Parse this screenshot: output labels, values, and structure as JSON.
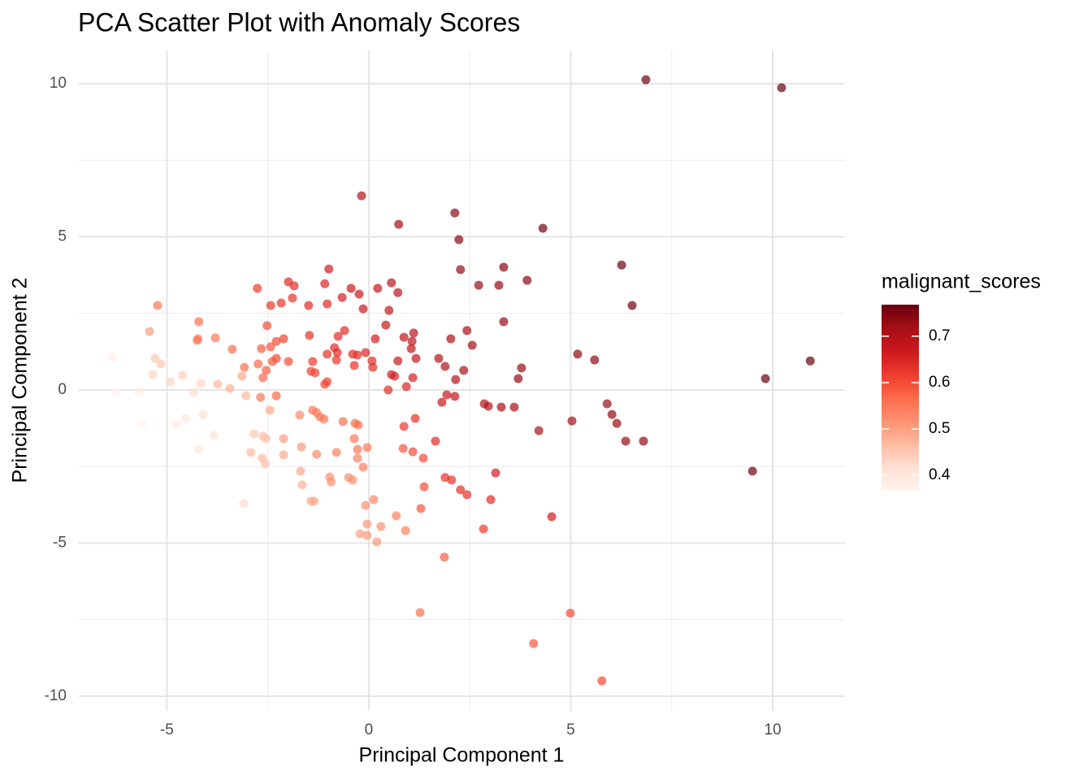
{
  "chart_data": {
    "type": "scatter",
    "title": "PCA Scatter Plot with Anomaly Scores",
    "x_label": "Principal Component 1",
    "y_label": "Principal Component 2",
    "color_label": "malignant_scores",
    "x": [
      6.86,
      10.22,
      -0.18,
      0.74,
      2.13,
      2.23,
      4.31,
      6.26,
      6.52,
      10.93,
      9.82,
      9.5,
      2.27,
      3.34,
      2.72,
      3.22,
      3.92,
      3.34,
      2.43,
      2.03,
      2.56,
      5.17,
      5.59,
      3.78,
      3.7,
      2.35,
      1.73,
      1.89,
      2.15,
      2.86,
      2.96,
      3.28,
      3.6,
      4.21,
      5.03,
      5.9,
      6.02,
      6.14,
      6.36,
      6.8,
      1.81,
      1.93,
      2.13,
      1.65,
      1.89,
      2.05,
      2.27,
      2.43,
      3.14,
      3.02,
      2.84,
      4.53,
      1.87,
      1.27,
      4.99,
      4.08,
      5.77,
      1.29,
      1.37,
      1.35,
      1.09,
      0.85,
      0.87,
      1.15,
      0.93,
      0.48,
      1.09,
      0.64,
      0.56,
      0.72,
      1.17,
      1.05,
      1.11,
      1.07,
      0.87,
      0.16,
      0.42,
      0.5,
      0.56,
      0.72,
      0.22,
      -0.24,
      -0.14,
      -0.44,
      -0.66,
      -0.99,
      -1.09,
      -1.03,
      -1.49,
      -1.85,
      -1.99,
      -1.89,
      -2.17,
      -2.43,
      -2.76,
      -0.6,
      -0.76,
      -0.85,
      -0.78,
      -1.03,
      -0.4,
      -0.28,
      -0.08,
      0.08,
      0.1,
      -0.36,
      -0.8,
      -1.47,
      -1.39,
      -1.43,
      -1.33,
      -1.03,
      -1.09,
      -2.11,
      -2.29,
      -1.99,
      -2.29,
      -2.39,
      -2.52,
      -2.43,
      -2.66,
      -2.62,
      -2.54,
      -3.08,
      -2.74,
      -2.29,
      -2.68,
      -3.38,
      -3.8,
      -4.21,
      -4.23,
      -4.25,
      -5.23,
      -5.43,
      -5.29,
      -5.15,
      -5.35,
      -4.91,
      -4.61,
      -6.34,
      -6.26,
      -5.69,
      -5.59,
      -4.75,
      -4.53,
      -4.33,
      -4.16,
      -4.1,
      -4.21,
      -3.84,
      -3.74,
      -3.44,
      -3.14,
      -3.04,
      -3.1,
      -2.84,
      -2.62,
      -2.54,
      -2.92,
      -2.64,
      -2.56,
      -2.45,
      -2.11,
      -2.11,
      -1.71,
      -1.67,
      -1.69,
      -1.65,
      -1.43,
      -1.35,
      -1.39,
      -1.29,
      -1.21,
      -1.11,
      -1.29,
      -0.8,
      -0.64,
      -0.34,
      -0.26,
      -0.36,
      -0.04,
      -0.28,
      -0.28,
      -0.14,
      -0.5,
      -0.4,
      -0.97,
      -0.93,
      0.12,
      -0.08,
      -0.04,
      -0.22,
      -0.04,
      0.3,
      0.2,
      0.68,
      0.91
    ],
    "y": [
      10.13,
      9.87,
      6.34,
      5.41,
      5.78,
      4.91,
      5.28,
      4.08,
      2.76,
      0.95,
      0.37,
      -2.65,
      3.93,
      4.01,
      3.42,
      3.42,
      3.58,
      2.23,
      1.94,
      1.67,
      1.46,
      1.17,
      0.98,
      0.72,
      0.37,
      0.64,
      1.03,
      0.77,
      0.34,
      -0.45,
      -0.53,
      -0.56,
      -0.56,
      -1.33,
      -1.01,
      -0.45,
      -0.8,
      -1.09,
      -1.67,
      -1.67,
      -0.4,
      -0.16,
      -0.21,
      -1.67,
      -2.86,
      -2.94,
      -3.26,
      -3.42,
      -2.71,
      -3.58,
      -4.54,
      -4.14,
      -5.46,
      -7.27,
      -7.29,
      -8.28,
      -9.5,
      -3.87,
      -3.16,
      -2.23,
      -2.02,
      -1.91,
      -1.19,
      -0.93,
      0.11,
      0.0,
      0.4,
      0.45,
      0.5,
      0.95,
      1.03,
      1.35,
      1.86,
      1.59,
      1.72,
      1.67,
      2.12,
      2.6,
      3.5,
      3.18,
      3.32,
      3.13,
      2.65,
      3.32,
      3.02,
      3.95,
      3.47,
      2.81,
      2.76,
      3.4,
      3.53,
      3.0,
      2.84,
      2.76,
      3.32,
      1.94,
      1.75,
      1.38,
      1.22,
      1.17,
      1.17,
      1.14,
      1.22,
      0.95,
      0.74,
      0.8,
      0.98,
      1.78,
      0.93,
      0.61,
      0.56,
      0.27,
      0.19,
      1.67,
      1.59,
      0.93,
      1.03,
      0.93,
      2.1,
      1.41,
      1.35,
      0.4,
      0.64,
      0.74,
      0.85,
      -0.19,
      -0.24,
      1.33,
      1.7,
      2.23,
      1.67,
      1.62,
      2.76,
      1.91,
      1.03,
      0.85,
      0.5,
      0.27,
      0.48,
      1.06,
      -0.08,
      -0.05,
      -1.11,
      -1.11,
      -0.93,
      -0.08,
      0.21,
      -0.8,
      -1.94,
      -1.49,
      0.19,
      0.05,
      0.45,
      -0.19,
      -3.71,
      -1.43,
      -1.51,
      -1.59,
      -2.04,
      -2.23,
      -2.41,
      -0.66,
      -1.59,
      -2.12,
      -0.82,
      -1.86,
      -2.65,
      -3.1,
      -3.63,
      -3.63,
      -0.66,
      -0.74,
      -0.88,
      -0.95,
      -2.1,
      -2.04,
      -1.03,
      -1.09,
      -1.14,
      -1.59,
      -1.88,
      -1.94,
      -2.23,
      -2.52,
      -2.86,
      -2.94,
      -2.84,
      -3.0,
      -3.58,
      -3.77,
      -4.38,
      -4.7,
      -4.75,
      -4.46,
      -4.96,
      -4.11,
      -4.59
    ],
    "scores": [
      0.76,
      0.77,
      0.7,
      0.72,
      0.74,
      0.74,
      0.76,
      0.76,
      0.76,
      0.77,
      0.77,
      0.76,
      0.73,
      0.74,
      0.73,
      0.73,
      0.74,
      0.73,
      0.72,
      0.71,
      0.72,
      0.74,
      0.74,
      0.73,
      0.73,
      0.71,
      0.7,
      0.7,
      0.7,
      0.7,
      0.7,
      0.71,
      0.71,
      0.71,
      0.72,
      0.73,
      0.73,
      0.73,
      0.73,
      0.73,
      0.67,
      0.67,
      0.68,
      0.64,
      0.63,
      0.63,
      0.63,
      0.63,
      0.66,
      0.64,
      0.62,
      0.66,
      0.58,
      0.56,
      0.6,
      0.59,
      0.6,
      0.59,
      0.6,
      0.6,
      0.6,
      0.59,
      0.62,
      0.63,
      0.65,
      0.64,
      0.66,
      0.65,
      0.66,
      0.67,
      0.67,
      0.68,
      0.69,
      0.68,
      0.68,
      0.66,
      0.67,
      0.68,
      0.69,
      0.69,
      0.68,
      0.67,
      0.67,
      0.67,
      0.66,
      0.66,
      0.65,
      0.64,
      0.64,
      0.64,
      0.64,
      0.63,
      0.63,
      0.62,
      0.62,
      0.64,
      0.64,
      0.64,
      0.64,
      0.63,
      0.64,
      0.64,
      0.65,
      0.64,
      0.64,
      0.63,
      0.63,
      0.63,
      0.62,
      0.61,
      0.61,
      0.61,
      0.61,
      0.61,
      0.6,
      0.6,
      0.6,
      0.59,
      0.6,
      0.59,
      0.58,
      0.57,
      0.58,
      0.56,
      0.57,
      0.57,
      0.55,
      0.56,
      0.55,
      0.56,
      0.55,
      0.55,
      0.55,
      0.5,
      0.45,
      0.45,
      0.43,
      0.43,
      0.44,
      0.38,
      0.37,
      0.39,
      0.37,
      0.39,
      0.4,
      0.42,
      0.43,
      0.42,
      0.4,
      0.41,
      0.47,
      0.48,
      0.49,
      0.47,
      0.42,
      0.45,
      0.46,
      0.46,
      0.47,
      0.47,
      0.46,
      0.49,
      0.5,
      0.49,
      0.53,
      0.51,
      0.49,
      0.48,
      0.49,
      0.49,
      0.55,
      0.55,
      0.55,
      0.55,
      0.53,
      0.54,
      0.56,
      0.56,
      0.56,
      0.55,
      0.55,
      0.55,
      0.54,
      0.54,
      0.52,
      0.52,
      0.52,
      0.52,
      0.53,
      0.52,
      0.51,
      0.5,
      0.51,
      0.52,
      0.51,
      0.54,
      0.54
    ],
    "xlim": [
      -7.18,
      11.79
    ],
    "ylim": [
      -10.48,
      11.09
    ],
    "xticks": [
      -5,
      0,
      5,
      10
    ],
    "yticks": [
      -10,
      -5,
      0,
      5,
      10
    ],
    "xminor": [
      -2.5,
      2.5,
      7.5
    ],
    "yminor": [
      -7.5,
      -2.5,
      2.5,
      7.5
    ],
    "clim": [
      0.367,
      0.768
    ],
    "cticks": [
      0.4,
      0.5,
      0.6,
      0.7
    ],
    "colorscale": [
      "#fff5f0",
      "#fee0d2",
      "#fcbba1",
      "#fc9272",
      "#fb6a4a",
      "#ef3b2c",
      "#cb181d",
      "#a50f15",
      "#67000d"
    ],
    "opacity": 0.7,
    "grid": true
  }
}
